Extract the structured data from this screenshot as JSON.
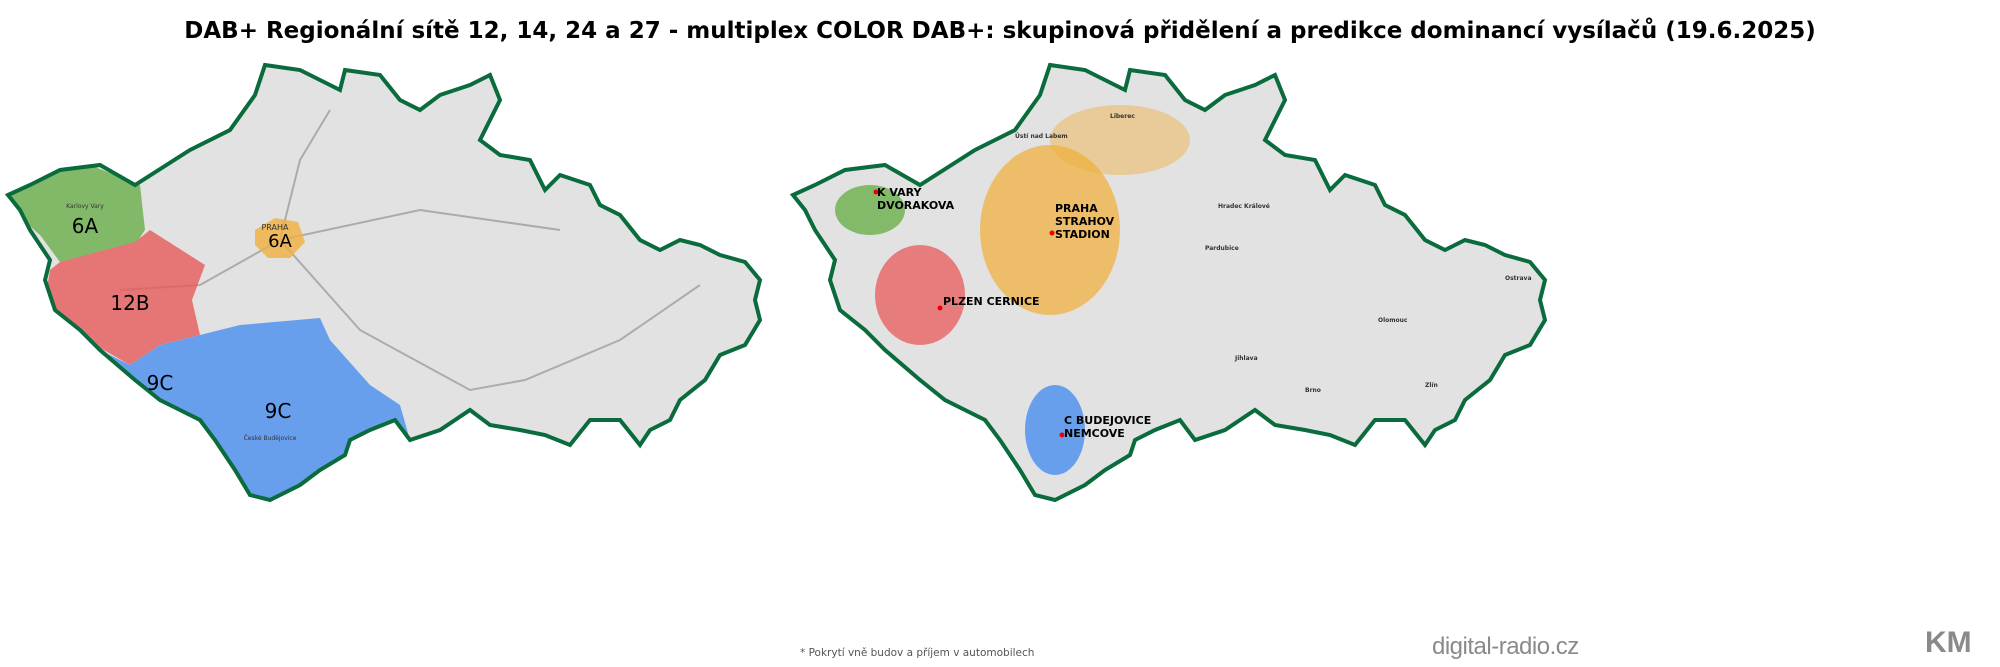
{
  "title": "DAB+ Regionální sítě 12, 14, 24 a 27 - multiplex COLOR DAB+: skupinová přidělení a predikce dominancí vysílačů (19.6.2025)",
  "colors": {
    "green": "#6ab04c",
    "red": "#e85a5a",
    "blue": "#4a8ff0",
    "orange": "#f0b040",
    "border": "#0a6b3c",
    "land": "#e2e2e2"
  },
  "left_map": {
    "regions": [
      {
        "label": "6A",
        "color": "green"
      },
      {
        "label": "12B",
        "color": "red"
      },
      {
        "label": "9C",
        "color": "blue"
      },
      {
        "label": "9C",
        "color": "blue"
      },
      {
        "label": "6A",
        "color": "orange"
      }
    ],
    "cities": {
      "praha": "PRAHA",
      "karlovy_vary": "Karlovy Vary",
      "ceske_budejovice": "České Budějovice"
    }
  },
  "right_map": {
    "transmitters": [
      {
        "name": "K VARY",
        "site": "DVORAKOVA",
        "color": "green"
      },
      {
        "name": "PRAHA",
        "site": "STRAHOV",
        "extra": "STADION",
        "color": "orange"
      },
      {
        "name": "PLZEN CERNICE",
        "color": "red"
      },
      {
        "name": "C BUDEJOVICE",
        "site": "NEMCOVE",
        "color": "blue"
      }
    ],
    "cities": {
      "liberec": "Liberec",
      "hradec": "Hradec Králové",
      "pardubice": "Pardubice",
      "ostrava": "Ostrava",
      "olomouc": "Olomouc",
      "jihlava": "Jihlava",
      "brno": "Brno",
      "zlin": "Zlín",
      "usti": "Ústí nad Labem"
    }
  },
  "footnote": "* Pokrytí vně budov a příjem v automobilech",
  "site": "digital-radio.cz",
  "logo": "KM"
}
